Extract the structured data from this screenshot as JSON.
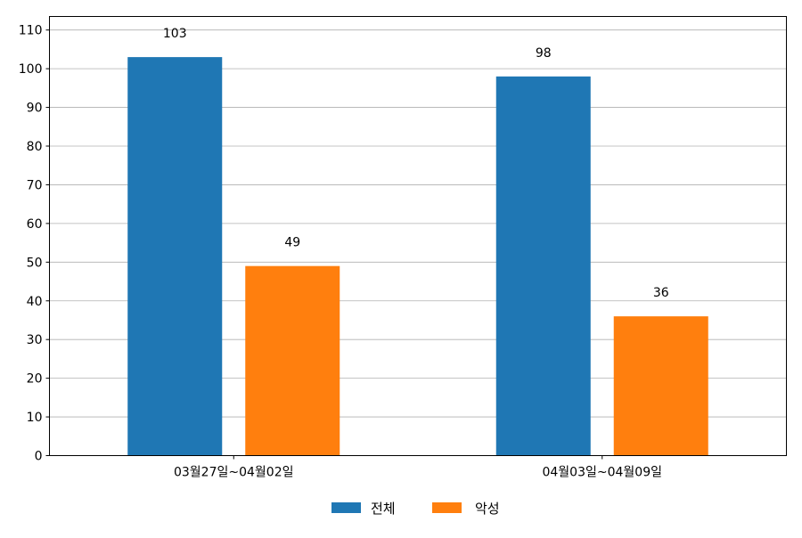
{
  "chart_data": {
    "type": "bar",
    "categories": [
      "03월27일~04월02일",
      "04월03일~04월09일"
    ],
    "series": [
      {
        "name": "전체",
        "values": [
          103,
          98
        ],
        "color": "#1f77b4"
      },
      {
        "name": "악성",
        "values": [
          49,
          36
        ],
        "color": "#ff7f0e"
      }
    ],
    "yticks": [
      0,
      10,
      20,
      30,
      40,
      50,
      60,
      70,
      80,
      90,
      100,
      110
    ],
    "ylim": [
      0,
      113.5
    ],
    "grid": "horizontal",
    "legend_position": "bottom-center",
    "data_labels": true
  }
}
